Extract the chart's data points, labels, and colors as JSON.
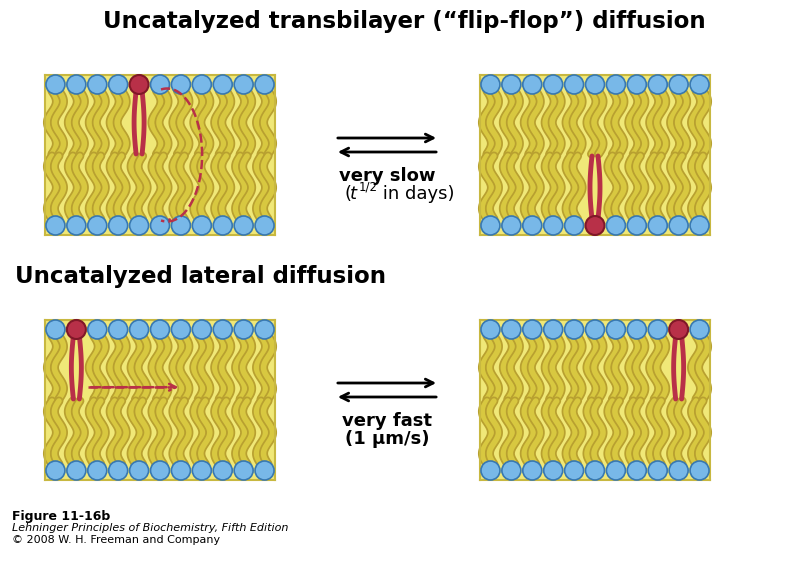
{
  "title1": "Uncatalyzed transbilayer (“flip-flop”) diffusion",
  "title2": "Uncatalyzed lateral diffusion",
  "label_slow1": "very slow",
  "label_slow2": "(t",
  "label_slow3": "1/2",
  "label_slow4": " in days)",
  "label_fast1": "very fast",
  "label_fast2": "(1 μm/s)",
  "fig_label": "Figure 11-16b",
  "fig_label2": "Lehninger Principles of Biochemistry, Fifth Edition",
  "fig_label3": "© 2008 W. H. Freeman and Company",
  "bg_color": "#ffffff",
  "membrane_fill": "#f0e878",
  "membrane_edge": "#c8b840",
  "head_color": "#78b8e8",
  "head_edge": "#3878b0",
  "red_head": "#b83048",
  "red_head_edge": "#801828",
  "tail_color": "#d8c840",
  "tail_edge": "#b8a030"
}
